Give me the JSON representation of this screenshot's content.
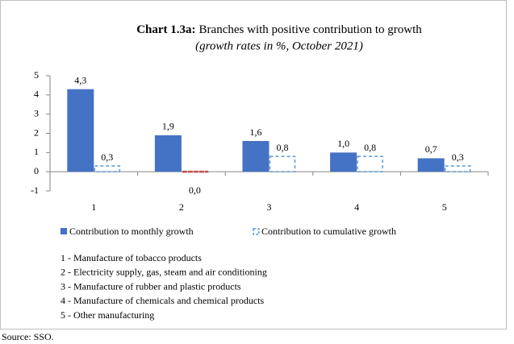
{
  "chart_data": {
    "type": "bar",
    "title_label": "Chart 1.3a:",
    "title": "Branches with positive contribution to growth",
    "subtitle": "(growth rates in %, October 2021)",
    "categories": [
      "1",
      "2",
      "3",
      "4",
      "5"
    ],
    "series": [
      {
        "name": "Contribution to monthly growth",
        "color": "#4472c4",
        "style": "solid",
        "values": [
          4.3,
          1.9,
          1.6,
          1.0,
          0.7
        ],
        "value_labels": [
          "4,3",
          "1,9",
          "1,6",
          "1,0",
          "0,7"
        ]
      },
      {
        "name": "Contribution to cumulative growth",
        "color": "#5b9bd5",
        "style": "dashed",
        "point_colors": [
          "#5b9bd5",
          "#c0504d",
          "#5b9bd5",
          "#5b9bd5",
          "#5b9bd5"
        ],
        "values": [
          0.3,
          0.0,
          0.8,
          0.8,
          0.3
        ],
        "value_labels": [
          "0,3",
          "0,0",
          "0,8",
          "0,8",
          "0,3"
        ]
      }
    ],
    "ylim": [
      -1,
      5
    ],
    "yticks": [
      -1,
      0,
      1,
      2,
      3,
      4,
      5
    ],
    "grid": false,
    "legend": "bottom",
    "notes": [
      "1 - Manufacture of tobacco products",
      "2 - Electricity supply, gas, steam and air conditioning",
      "3 - Manufacture of rubber and plastic products",
      "4 - Manufacture of chemicals and chemical products",
      "5 - Other manufacturing"
    ],
    "source": "Source: SSO."
  }
}
